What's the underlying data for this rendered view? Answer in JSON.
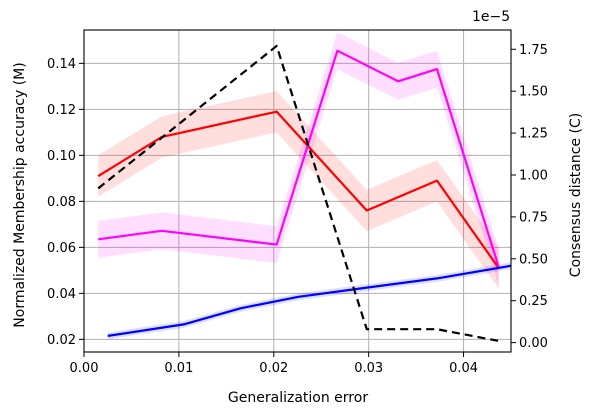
{
  "chart_data": {
    "type": "line",
    "title": "",
    "xlabel": "Generalization error",
    "ylabel_left": "Normalized Membership accuracy (M)",
    "ylabel_right": "Consensus distance (C)",
    "right_axis_offset": "1e−5",
    "xlim": [
      0.0,
      0.045
    ],
    "ylim_left": [
      0.0145,
      0.1545
    ],
    "ylim_right": [
      -5.6e-07,
      1.865e-05
    ],
    "x_ticks": [
      0.0,
      0.01,
      0.02,
      0.03,
      0.04
    ],
    "x_tick_labels": [
      "0.00",
      "0.01",
      "0.02",
      "0.03",
      "0.04"
    ],
    "y_left_ticks": [
      0.02,
      0.04,
      0.06,
      0.08,
      0.1,
      0.12,
      0.14
    ],
    "y_left_tick_labels": [
      "0.02",
      "0.04",
      "0.06",
      "0.08",
      "0.10",
      "0.12",
      "0.14"
    ],
    "y_right_ticks": [
      0,
      2.5e-06,
      5e-06,
      7.5e-06,
      1e-05,
      1.25e-05,
      1.5e-05,
      1.75e-05
    ],
    "y_right_tick_labels": [
      "0.00",
      "0.25",
      "0.50",
      "0.75",
      "1.00",
      "1.25",
      "1.50",
      "1.75"
    ],
    "grid": true,
    "series": [
      {
        "axis": "left",
        "color": "#ff0000",
        "style": "solid",
        "band": 0.009,
        "x": [
          0.0015,
          0.0082,
          0.0203,
          0.0298,
          0.0372,
          0.0437
        ],
        "y": [
          0.091,
          0.108,
          0.119,
          0.076,
          0.089,
          0.051
        ]
      },
      {
        "axis": "left",
        "color": "#ff00ff",
        "style": "solid",
        "band": 0.008,
        "x": [
          0.0015,
          0.0082,
          0.0203,
          0.0267,
          0.0331,
          0.0372,
          0.0437
        ],
        "y": [
          0.0635,
          0.0672,
          0.0612,
          0.1455,
          0.1322,
          0.1375,
          0.0515
        ]
      },
      {
        "axis": "left",
        "color": "#0000ff",
        "style": "solid",
        "band": 0.0015,
        "x": [
          0.0025,
          0.0105,
          0.0165,
          0.0226,
          0.0298,
          0.0372,
          0.045
        ],
        "y": [
          0.0215,
          0.0265,
          0.0335,
          0.0385,
          0.0425,
          0.0465,
          0.052
        ]
      },
      {
        "axis": "right",
        "color": "#000000",
        "style": "dashed",
        "band": 0,
        "x": [
          0.0015,
          0.0203,
          0.0298,
          0.0372,
          0.0437
        ],
        "y": [
          9.2e-06,
          1.77e-05,
          8e-07,
          8e-07,
          1e-07
        ]
      }
    ]
  }
}
